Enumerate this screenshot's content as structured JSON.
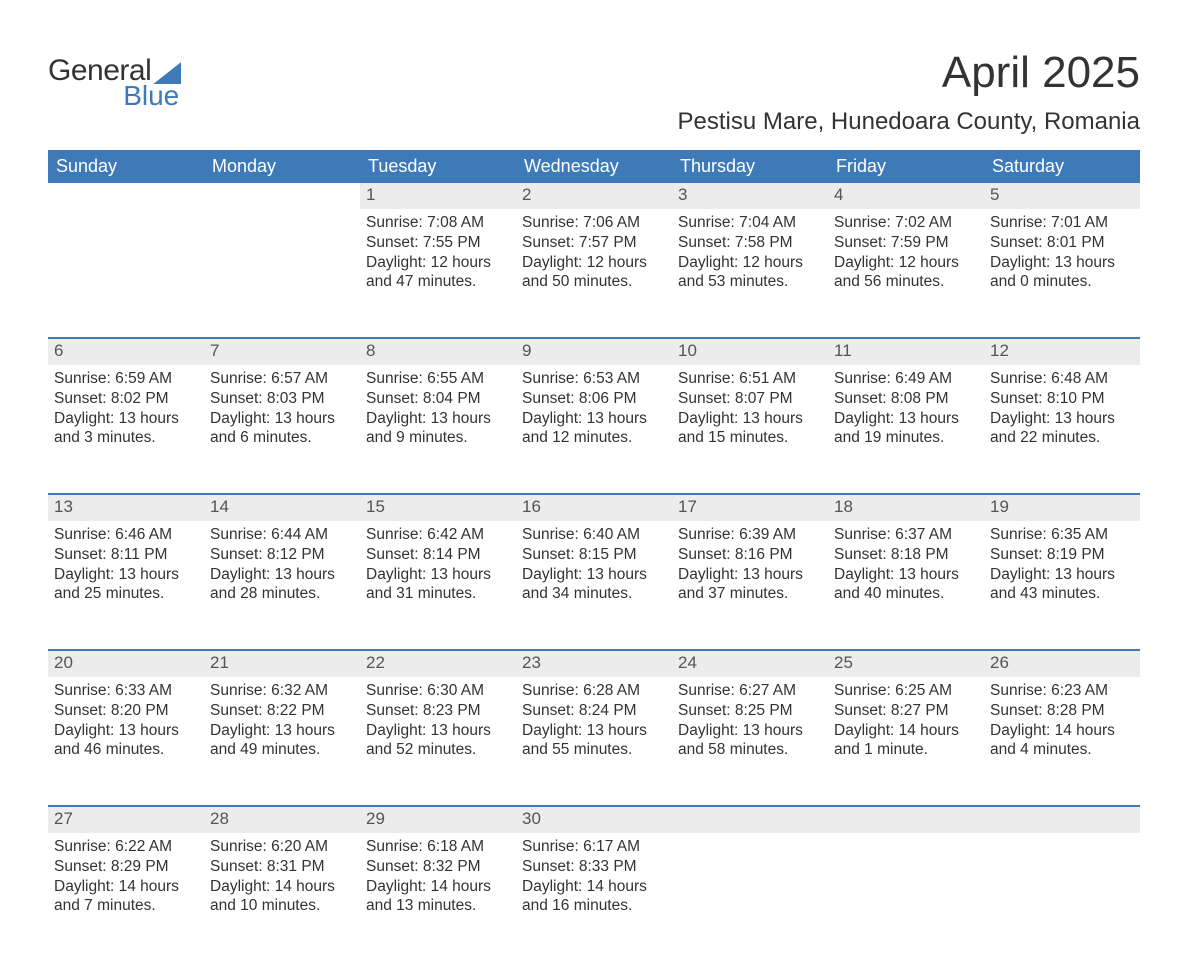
{
  "brand": {
    "line1": "General",
    "line2": "Blue"
  },
  "title": "April 2025",
  "location": "Pestisu Mare, Hunedoara County, Romania",
  "colors": {
    "header_bg": "#3e7ab8",
    "header_text": "#ffffff",
    "daynum_bg": "#ececec",
    "border_top": "#3e7ab8",
    "text": "#333333",
    "background": "#ffffff"
  },
  "dow": [
    "Sunday",
    "Monday",
    "Tuesday",
    "Wednesday",
    "Thursday",
    "Friday",
    "Saturday"
  ],
  "labels": {
    "sunrise": "Sunrise:",
    "sunset": "Sunset:",
    "daylight": "Daylight:"
  },
  "weeks": [
    [
      null,
      null,
      {
        "n": "1",
        "sr": "7:08 AM",
        "ss": "7:55 PM",
        "dl": "12 hours and 47 minutes."
      },
      {
        "n": "2",
        "sr": "7:06 AM",
        "ss": "7:57 PM",
        "dl": "12 hours and 50 minutes."
      },
      {
        "n": "3",
        "sr": "7:04 AM",
        "ss": "7:58 PM",
        "dl": "12 hours and 53 minutes."
      },
      {
        "n": "4",
        "sr": "7:02 AM",
        "ss": "7:59 PM",
        "dl": "12 hours and 56 minutes."
      },
      {
        "n": "5",
        "sr": "7:01 AM",
        "ss": "8:01 PM",
        "dl": "13 hours and 0 minutes."
      }
    ],
    [
      {
        "n": "6",
        "sr": "6:59 AM",
        "ss": "8:02 PM",
        "dl": "13 hours and 3 minutes."
      },
      {
        "n": "7",
        "sr": "6:57 AM",
        "ss": "8:03 PM",
        "dl": "13 hours and 6 minutes."
      },
      {
        "n": "8",
        "sr": "6:55 AM",
        "ss": "8:04 PM",
        "dl": "13 hours and 9 minutes."
      },
      {
        "n": "9",
        "sr": "6:53 AM",
        "ss": "8:06 PM",
        "dl": "13 hours and 12 minutes."
      },
      {
        "n": "10",
        "sr": "6:51 AM",
        "ss": "8:07 PM",
        "dl": "13 hours and 15 minutes."
      },
      {
        "n": "11",
        "sr": "6:49 AM",
        "ss": "8:08 PM",
        "dl": "13 hours and 19 minutes."
      },
      {
        "n": "12",
        "sr": "6:48 AM",
        "ss": "8:10 PM",
        "dl": "13 hours and 22 minutes."
      }
    ],
    [
      {
        "n": "13",
        "sr": "6:46 AM",
        "ss": "8:11 PM",
        "dl": "13 hours and 25 minutes."
      },
      {
        "n": "14",
        "sr": "6:44 AM",
        "ss": "8:12 PM",
        "dl": "13 hours and 28 minutes."
      },
      {
        "n": "15",
        "sr": "6:42 AM",
        "ss": "8:14 PM",
        "dl": "13 hours and 31 minutes."
      },
      {
        "n": "16",
        "sr": "6:40 AM",
        "ss": "8:15 PM",
        "dl": "13 hours and 34 minutes."
      },
      {
        "n": "17",
        "sr": "6:39 AM",
        "ss": "8:16 PM",
        "dl": "13 hours and 37 minutes."
      },
      {
        "n": "18",
        "sr": "6:37 AM",
        "ss": "8:18 PM",
        "dl": "13 hours and 40 minutes."
      },
      {
        "n": "19",
        "sr": "6:35 AM",
        "ss": "8:19 PM",
        "dl": "13 hours and 43 minutes."
      }
    ],
    [
      {
        "n": "20",
        "sr": "6:33 AM",
        "ss": "8:20 PM",
        "dl": "13 hours and 46 minutes."
      },
      {
        "n": "21",
        "sr": "6:32 AM",
        "ss": "8:22 PM",
        "dl": "13 hours and 49 minutes."
      },
      {
        "n": "22",
        "sr": "6:30 AM",
        "ss": "8:23 PM",
        "dl": "13 hours and 52 minutes."
      },
      {
        "n": "23",
        "sr": "6:28 AM",
        "ss": "8:24 PM",
        "dl": "13 hours and 55 minutes."
      },
      {
        "n": "24",
        "sr": "6:27 AM",
        "ss": "8:25 PM",
        "dl": "13 hours and 58 minutes."
      },
      {
        "n": "25",
        "sr": "6:25 AM",
        "ss": "8:27 PM",
        "dl": "14 hours and 1 minute."
      },
      {
        "n": "26",
        "sr": "6:23 AM",
        "ss": "8:28 PM",
        "dl": "14 hours and 4 minutes."
      }
    ],
    [
      {
        "n": "27",
        "sr": "6:22 AM",
        "ss": "8:29 PM",
        "dl": "14 hours and 7 minutes."
      },
      {
        "n": "28",
        "sr": "6:20 AM",
        "ss": "8:31 PM",
        "dl": "14 hours and 10 minutes."
      },
      {
        "n": "29",
        "sr": "6:18 AM",
        "ss": "8:32 PM",
        "dl": "14 hours and 13 minutes."
      },
      {
        "n": "30",
        "sr": "6:17 AM",
        "ss": "8:33 PM",
        "dl": "14 hours and 16 minutes."
      },
      null,
      null,
      null
    ]
  ]
}
